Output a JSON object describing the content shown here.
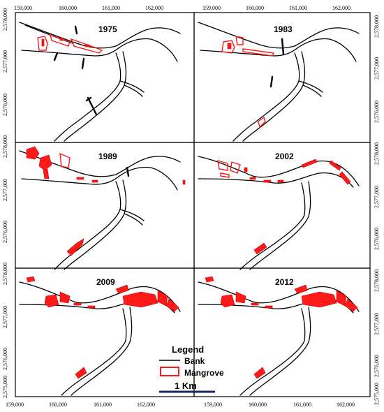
{
  "map": {
    "x_ticks": [
      "159,000",
      "160,000",
      "161,000",
      "162,000"
    ],
    "y_ticks_top": [
      "2,578,000",
      "2,577,000",
      "2,576,000"
    ],
    "y_ticks_mid1": [
      "2,578,000",
      "2,577,000",
      "2,576,000"
    ],
    "y_ticks_mid2": [
      "2,578,000",
      "2,577,000",
      "2,576,000"
    ],
    "y_ticks_bottom": [
      "2,575,000"
    ],
    "panels": [
      {
        "year": "1975"
      },
      {
        "year": "1983"
      },
      {
        "year": "1989"
      },
      {
        "year": "2002"
      },
      {
        "year": "2009"
      },
      {
        "year": "2012"
      }
    ],
    "legend": {
      "title": "Legend",
      "bank_label": "Bank",
      "mangrove_label": "Mangrove",
      "scale_label": "1 Km"
    },
    "colors": {
      "mangrove": "#ff1a1a",
      "bank": "#000000"
    }
  }
}
